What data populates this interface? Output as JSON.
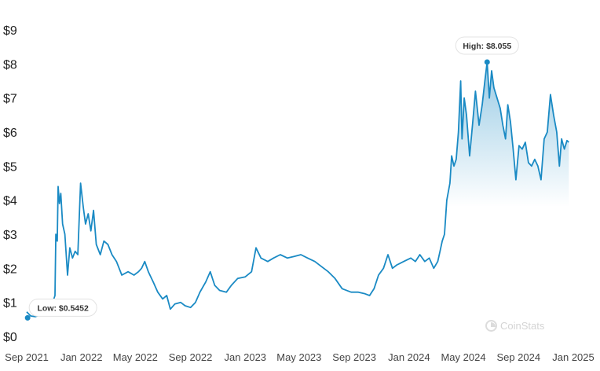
{
  "chart_data": {
    "type": "area",
    "x_ticks": [
      "Sep 2021",
      "Jan 2022",
      "May 2022",
      "Sep 2022",
      "Jan 2023",
      "May 2023",
      "Sep 2023",
      "Jan 2024",
      "May 2024",
      "Sep 2024",
      "Jan 2025"
    ],
    "y_ticks": [
      "$0",
      "$1",
      "$2",
      "$3",
      "$4",
      "$5",
      "$6",
      "$7",
      "$8",
      "$9"
    ],
    "ylim": [
      0,
      9
    ],
    "xlim": [
      "2021-09-01",
      "2025-01-01"
    ],
    "series": [
      {
        "color": "#1a8ac4",
        "points": [
          [
            "2021-09-01",
            0.72
          ],
          [
            "2021-09-10",
            0.6
          ],
          [
            "2021-09-20",
            0.58
          ],
          [
            "2021-10-01",
            0.63
          ],
          [
            "2021-10-20",
            0.65
          ],
          [
            "2021-11-03",
            1.2
          ],
          [
            "2021-11-05",
            3.0
          ],
          [
            "2021-11-08",
            2.8
          ],
          [
            "2021-11-10",
            4.4
          ],
          [
            "2021-11-13",
            3.9
          ],
          [
            "2021-11-16",
            4.2
          ],
          [
            "2021-11-20",
            3.3
          ],
          [
            "2021-11-25",
            3.0
          ],
          [
            "2021-12-01",
            1.8
          ],
          [
            "2021-12-06",
            2.6
          ],
          [
            "2021-12-12",
            2.3
          ],
          [
            "2021-12-18",
            2.5
          ],
          [
            "2021-12-24",
            2.4
          ],
          [
            "2021-12-30",
            4.5
          ],
          [
            "2022-01-05",
            3.8
          ],
          [
            "2022-01-10",
            3.3
          ],
          [
            "2022-01-16",
            3.6
          ],
          [
            "2022-01-22",
            3.1
          ],
          [
            "2022-01-28",
            3.7
          ],
          [
            "2022-02-03",
            2.7
          ],
          [
            "2022-02-12",
            2.4
          ],
          [
            "2022-02-20",
            2.8
          ],
          [
            "2022-03-01",
            2.7
          ],
          [
            "2022-03-10",
            2.4
          ],
          [
            "2022-03-20",
            2.2
          ],
          [
            "2022-04-01",
            1.8
          ],
          [
            "2022-04-15",
            1.9
          ],
          [
            "2022-04-28",
            1.8
          ],
          [
            "2022-05-08",
            1.9
          ],
          [
            "2022-05-15",
            2.0
          ],
          [
            "2022-05-22",
            2.2
          ],
          [
            "2022-05-30",
            1.9
          ],
          [
            "2022-06-10",
            1.6
          ],
          [
            "2022-06-20",
            1.3
          ],
          [
            "2022-07-01",
            1.1
          ],
          [
            "2022-07-10",
            1.2
          ],
          [
            "2022-07-18",
            0.8
          ],
          [
            "2022-07-28",
            0.95
          ],
          [
            "2022-08-10",
            1.0
          ],
          [
            "2022-08-20",
            0.9
          ],
          [
            "2022-09-01",
            0.85
          ],
          [
            "2022-09-12",
            1.0
          ],
          [
            "2022-09-22",
            1.3
          ],
          [
            "2022-10-05",
            1.6
          ],
          [
            "2022-10-15",
            1.9
          ],
          [
            "2022-10-25",
            1.5
          ],
          [
            "2022-11-05",
            1.35
          ],
          [
            "2022-11-20",
            1.3
          ],
          [
            "2022-12-01",
            1.5
          ],
          [
            "2022-12-15",
            1.7
          ],
          [
            "2023-01-01",
            1.75
          ],
          [
            "2023-01-15",
            1.9
          ],
          [
            "2023-01-25",
            2.6
          ],
          [
            "2023-02-05",
            2.3
          ],
          [
            "2023-02-20",
            2.2
          ],
          [
            "2023-03-05",
            2.3
          ],
          [
            "2023-03-20",
            2.4
          ],
          [
            "2023-04-05",
            2.3
          ],
          [
            "2023-04-20",
            2.35
          ],
          [
            "2023-05-05",
            2.4
          ],
          [
            "2023-05-20",
            2.3
          ],
          [
            "2023-06-05",
            2.2
          ],
          [
            "2023-06-20",
            2.05
          ],
          [
            "2023-07-05",
            1.9
          ],
          [
            "2023-07-20",
            1.7
          ],
          [
            "2023-08-05",
            1.4
          ],
          [
            "2023-08-25",
            1.3
          ],
          [
            "2023-09-10",
            1.3
          ],
          [
            "2023-09-25",
            1.25
          ],
          [
            "2023-10-05",
            1.2
          ],
          [
            "2023-10-15",
            1.4
          ],
          [
            "2023-10-25",
            1.8
          ],
          [
            "2023-11-05",
            2.0
          ],
          [
            "2023-11-15",
            2.4
          ],
          [
            "2023-11-25",
            2.0
          ],
          [
            "2023-12-05",
            2.1
          ],
          [
            "2023-12-20",
            2.2
          ],
          [
            "2024-01-05",
            2.3
          ],
          [
            "2024-01-15",
            2.2
          ],
          [
            "2024-01-25",
            2.4
          ],
          [
            "2024-02-05",
            2.2
          ],
          [
            "2024-02-15",
            2.3
          ],
          [
            "2024-02-25",
            2.0
          ],
          [
            "2024-03-05",
            2.2
          ],
          [
            "2024-03-10",
            2.5
          ],
          [
            "2024-03-15",
            2.8
          ],
          [
            "2024-03-20",
            3.0
          ],
          [
            "2024-03-25",
            4.0
          ],
          [
            "2024-04-01",
            4.5
          ],
          [
            "2024-04-05",
            5.3
          ],
          [
            "2024-04-10",
            5.0
          ],
          [
            "2024-04-15",
            5.2
          ],
          [
            "2024-04-20",
            6.0
          ],
          [
            "2024-04-25",
            7.5
          ],
          [
            "2024-04-28",
            5.8
          ],
          [
            "2024-05-03",
            7.0
          ],
          [
            "2024-05-08",
            6.5
          ],
          [
            "2024-05-15",
            5.3
          ],
          [
            "2024-05-22",
            6.3
          ],
          [
            "2024-05-28",
            7.2
          ],
          [
            "2024-06-05",
            6.2
          ],
          [
            "2024-06-12",
            6.8
          ],
          [
            "2024-06-18",
            7.5
          ],
          [
            "2024-06-23",
            8.055
          ],
          [
            "2024-06-28",
            7.0
          ],
          [
            "2024-07-03",
            7.8
          ],
          [
            "2024-07-08",
            7.3
          ],
          [
            "2024-07-15",
            7.0
          ],
          [
            "2024-07-22",
            6.7
          ],
          [
            "2024-07-28",
            6.2
          ],
          [
            "2024-08-03",
            5.8
          ],
          [
            "2024-08-08",
            6.8
          ],
          [
            "2024-08-14",
            6.3
          ],
          [
            "2024-08-20",
            5.5
          ],
          [
            "2024-08-26",
            4.6
          ],
          [
            "2024-09-02",
            5.6
          ],
          [
            "2024-09-09",
            5.5
          ],
          [
            "2024-09-16",
            5.7
          ],
          [
            "2024-09-23",
            5.1
          ],
          [
            "2024-09-30",
            5.0
          ],
          [
            "2024-10-07",
            5.2
          ],
          [
            "2024-10-14",
            5.0
          ],
          [
            "2024-10-21",
            4.6
          ],
          [
            "2024-10-28",
            5.8
          ],
          [
            "2024-11-04",
            6.0
          ],
          [
            "2024-11-11",
            7.1
          ],
          [
            "2024-11-18",
            6.5
          ],
          [
            "2024-11-25",
            6.0
          ],
          [
            "2024-12-01",
            5.0
          ],
          [
            "2024-12-06",
            5.8
          ],
          [
            "2024-12-12",
            5.5
          ],
          [
            "2024-12-18",
            5.75
          ],
          [
            "2024-12-22",
            5.7
          ]
        ]
      }
    ],
    "callouts": [
      {
        "label": "High: $8.055",
        "date": "2024-06-23",
        "value": 8.055
      },
      {
        "label": "Low: $0.5452",
        "date": "2021-09-03",
        "value": 0.5452
      }
    ],
    "grid": false
  },
  "watermark": {
    "text": "CoinStats"
  },
  "colors": {
    "line": "#1a8ac4",
    "area_top": "#1a8ac4",
    "axis_text": "#222222"
  }
}
